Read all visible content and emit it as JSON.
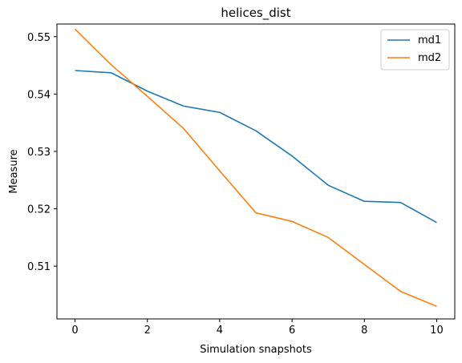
{
  "chart_data": {
    "type": "line",
    "title": "helices_dist",
    "xlabel": "Simulation snapshots",
    "ylabel": "Measure",
    "x": [
      0,
      1,
      2,
      3,
      4,
      5,
      6,
      7,
      8,
      9,
      10
    ],
    "xlim": [
      -0.5,
      10.5
    ],
    "ylim": [
      0.5008,
      0.5522
    ],
    "xticks": [
      0,
      2,
      4,
      6,
      8,
      10
    ],
    "yticks": [
      0.51,
      0.52,
      0.53,
      0.54,
      0.55
    ],
    "xtick_labels": [
      "0",
      "2",
      "4",
      "6",
      "8",
      "10"
    ],
    "ytick_labels": [
      "0.51",
      "0.52",
      "0.53",
      "0.54",
      "0.55"
    ],
    "grid": false,
    "legend_position": "top-right",
    "series": [
      {
        "name": "md1",
        "color": "#1f77b4",
        "values": [
          0.5441,
          0.5437,
          0.5405,
          0.5379,
          0.5368,
          0.5336,
          0.5292,
          0.5241,
          0.5213,
          0.5211,
          0.5176
        ]
      },
      {
        "name": "md2",
        "color": "#ff7f0e",
        "values": [
          0.5513,
          0.5451,
          0.5396,
          0.534,
          0.5266,
          0.5193,
          0.5178,
          0.515,
          0.5103,
          0.5056,
          0.503
        ]
      }
    ]
  }
}
